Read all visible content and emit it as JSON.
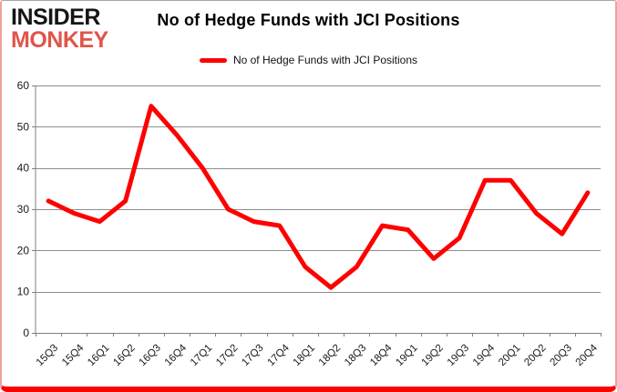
{
  "logo": {
    "line1": "INSIDER",
    "line2": "MONKEY",
    "accent_color": "#e0554a"
  },
  "title": "No of Hedge Funds with JCI Positions",
  "legend": {
    "label": "No of Hedge Funds with JCI Positions",
    "swatch_color": "#ff0000"
  },
  "frame": {
    "top_border_color": "#a6a6a6",
    "side_border_color": "#f2a09a",
    "bottom_bar_color": "#fb0300"
  },
  "chart_data": {
    "type": "line",
    "title": "No of Hedge Funds with JCI Positions",
    "categories": [
      "15Q3",
      "15Q4",
      "16Q1",
      "16Q2",
      "16Q3",
      "16Q4",
      "17Q1",
      "17Q2",
      "17Q3",
      "17Q4",
      "18Q1",
      "18Q2",
      "18Q3",
      "18Q4",
      "19Q1",
      "19Q2",
      "19Q3",
      "19Q4",
      "20Q1",
      "20Q2",
      "20Q3",
      "20Q4"
    ],
    "series": [
      {
        "name": "No of Hedge Funds with JCI Positions",
        "color": "#ff0000",
        "values": [
          32,
          29,
          27,
          32,
          55,
          48,
          40,
          30,
          27,
          26,
          16,
          11,
          16,
          26,
          25,
          18,
          23,
          37,
          37,
          29,
          24,
          34
        ]
      }
    ],
    "xlabel": "",
    "ylabel": "",
    "ylim": [
      0,
      60
    ],
    "yticks": [
      0,
      10,
      20,
      30,
      40,
      50,
      60
    ],
    "grid": true,
    "legend_position": "top-center",
    "gridline_color": "#8e8e8e",
    "axis_color": "#808080",
    "tick_label_color": "#1a1a1a"
  }
}
